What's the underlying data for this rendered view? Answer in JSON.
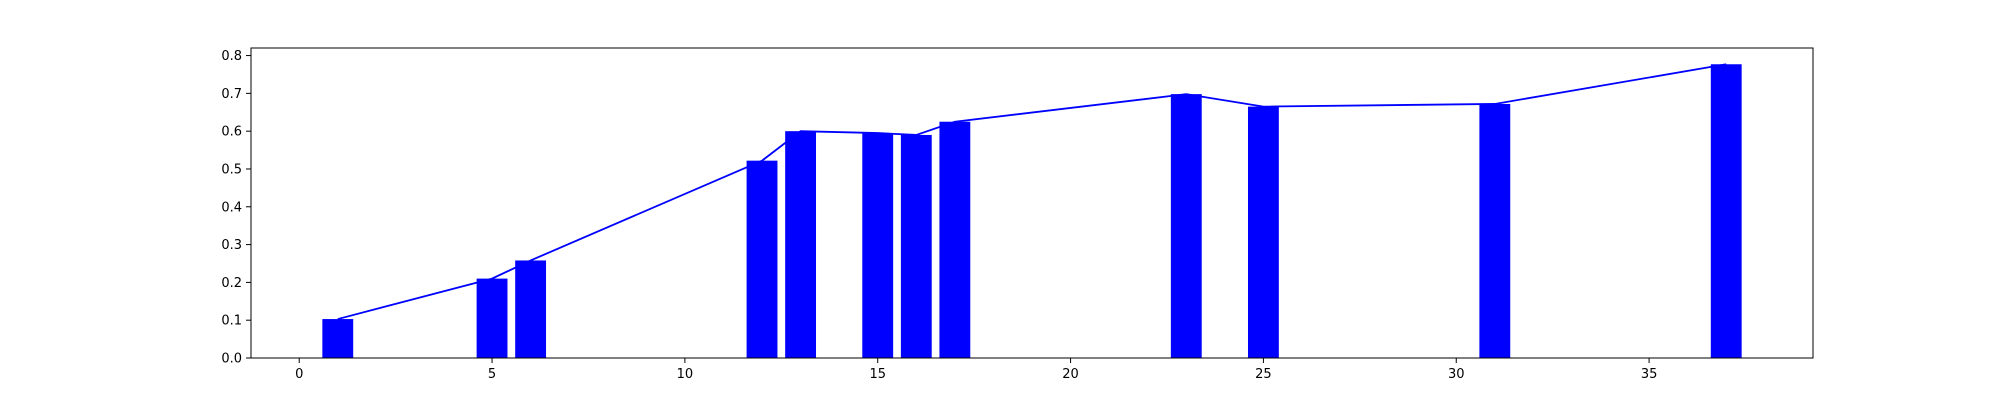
{
  "chart_data": {
    "type": "bar",
    "title": "",
    "xlabel": "",
    "ylabel": "",
    "bar_color": "#0000ff",
    "line_color": "#0000ff",
    "grid": false,
    "xlim": [
      -1.25,
      39.25
    ],
    "ylim": [
      0.0,
      0.82
    ],
    "xticks": [
      0,
      5,
      10,
      15,
      20,
      25,
      30,
      35
    ],
    "yticks": [
      0.0,
      0.1,
      0.2,
      0.3,
      0.4,
      0.5,
      0.6,
      0.7,
      0.8
    ],
    "ytick_labels": [
      "0.0",
      "0.1",
      "0.2",
      "0.3",
      "0.4",
      "0.5",
      "0.6",
      "0.7",
      "0.8"
    ],
    "bar_width": 0.8,
    "points": [
      {
        "x": 1,
        "y": 0.103
      },
      {
        "x": 5,
        "y": 0.21
      },
      {
        "x": 6,
        "y": 0.258
      },
      {
        "x": 12,
        "y": 0.522
      },
      {
        "x": 13,
        "y": 0.6
      },
      {
        "x": 15,
        "y": 0.595
      },
      {
        "x": 16,
        "y": 0.59
      },
      {
        "x": 17,
        "y": 0.625
      },
      {
        "x": 23,
        "y": 0.698
      },
      {
        "x": 25,
        "y": 0.665
      },
      {
        "x": 31,
        "y": 0.672
      },
      {
        "x": 37,
        "y": 0.777
      }
    ]
  }
}
